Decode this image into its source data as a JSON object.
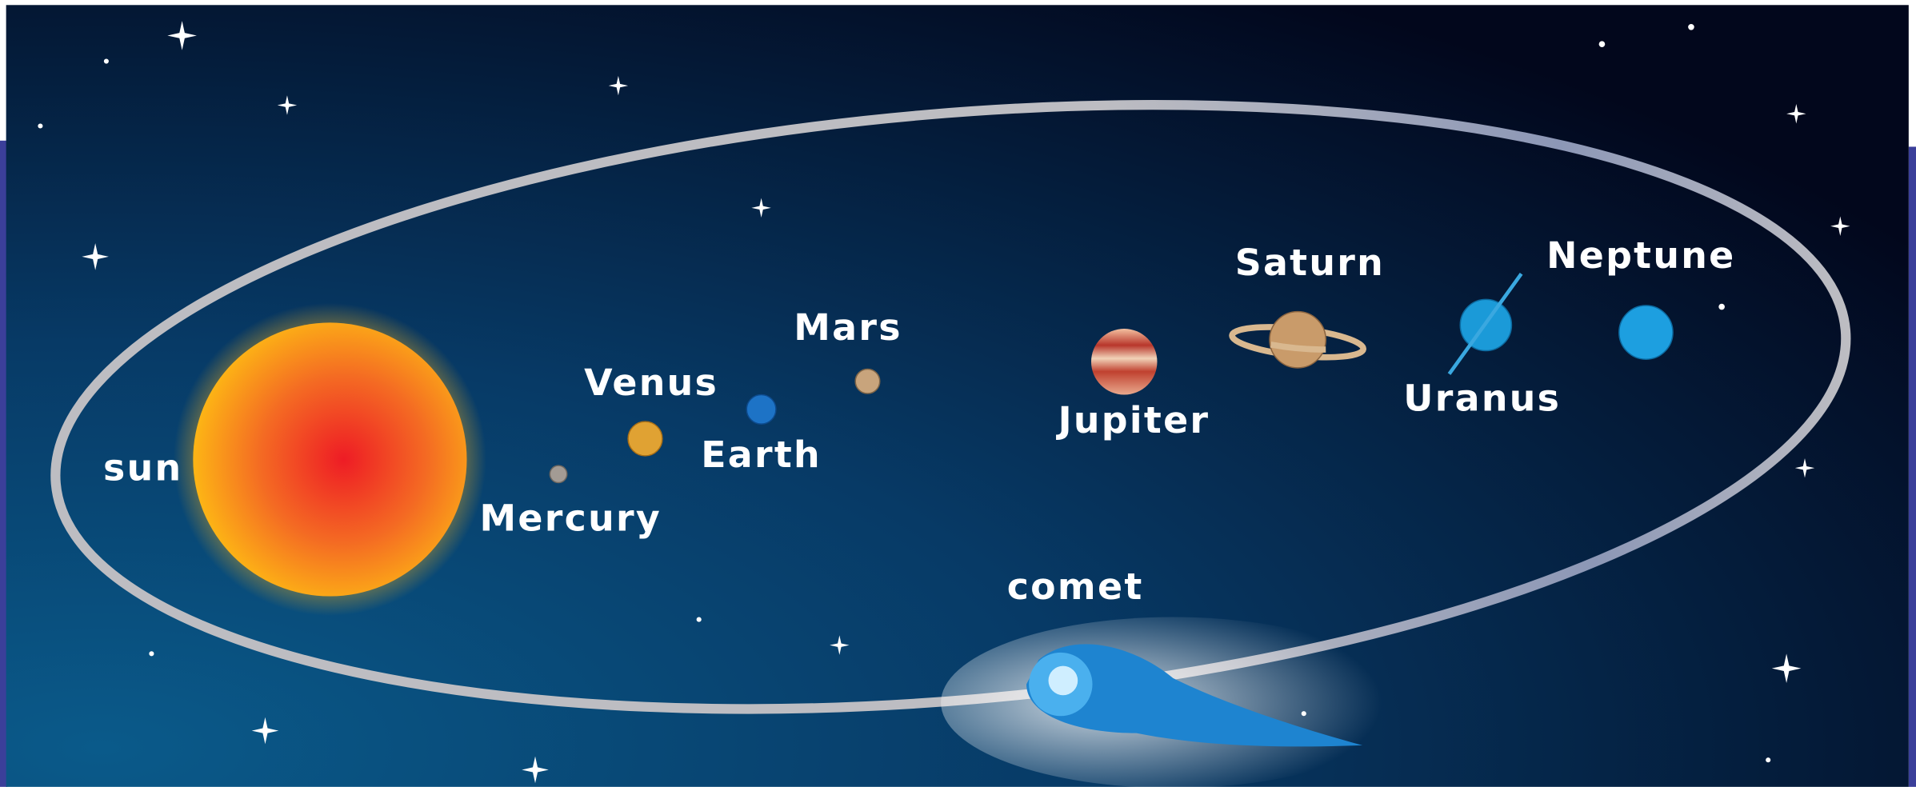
{
  "labels": {
    "sun": "sun",
    "mercury": "Mercury",
    "venus": "Venus",
    "earth": "Earth",
    "mars": "Mars",
    "jupiter": "Jupiter",
    "saturn": "Saturn",
    "uranus": "Uranus",
    "neptune": "Neptune",
    "comet": "comet"
  }
}
